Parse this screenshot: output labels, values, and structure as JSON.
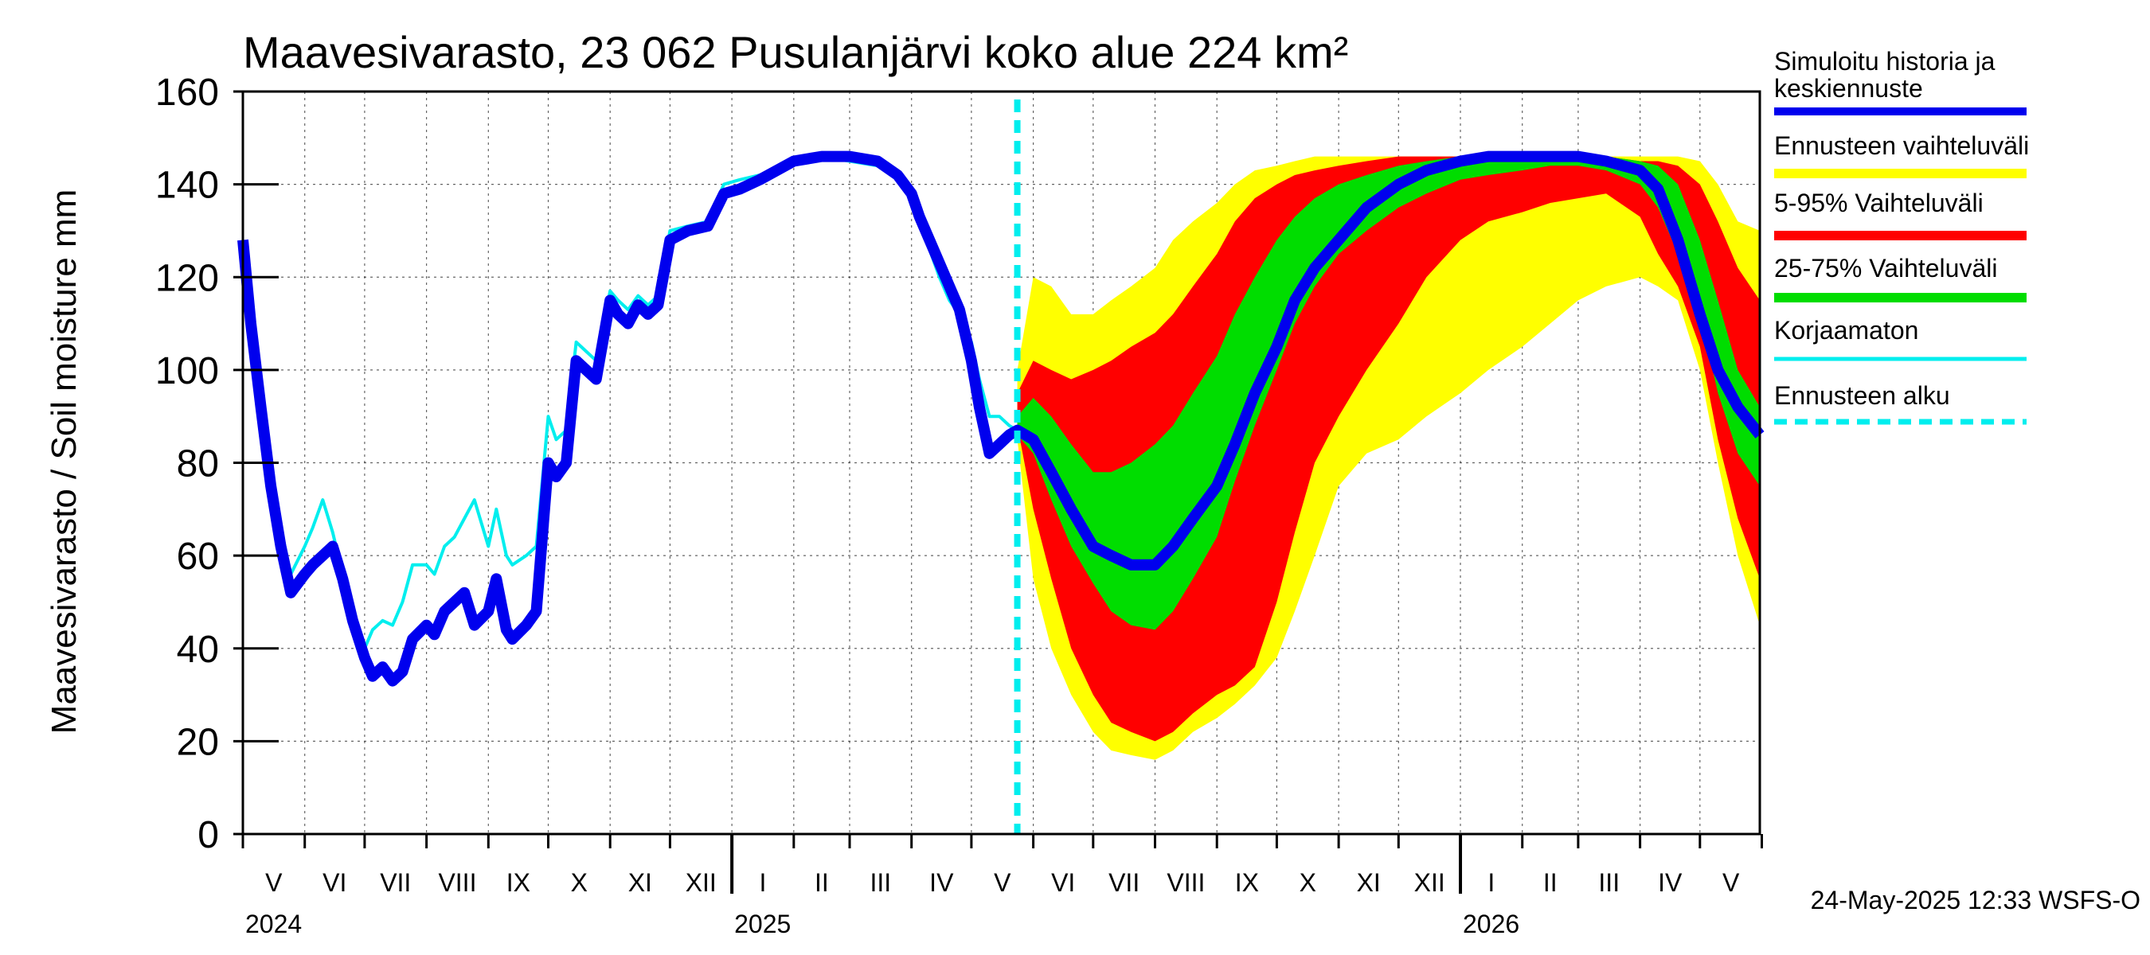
{
  "chart_data": {
    "type": "area",
    "title": "Maavesivarasto, 23 062 Pusulanjärvi koko alue 224 km²",
    "ylabel": "Maavesivarasto / Soil moisture   mm",
    "ylim": [
      0,
      160
    ],
    "yticks": [
      0,
      20,
      40,
      60,
      80,
      100,
      120,
      140,
      160
    ],
    "xlim": [
      "2024-05-01",
      "2026-05-31"
    ],
    "grid": true,
    "legend_position": "right",
    "forecast_start": "2025-05-24",
    "timestamp": "24-May-2025 12:33 WSFS-O",
    "months": [
      "V",
      "VI",
      "VII",
      "VIII",
      "IX",
      "X",
      "XI",
      "XII",
      "I",
      "II",
      "III",
      "IV",
      "V",
      "VI",
      "VII",
      "VIII",
      "IX",
      "X",
      "XI",
      "XII",
      "I",
      "II",
      "III",
      "IV",
      "V"
    ],
    "years": [
      {
        "label": "2024",
        "date": "2024-05-01"
      },
      {
        "label": "2025",
        "date": "2025-01-01"
      },
      {
        "label": "2026",
        "date": "2026-01-01"
      }
    ],
    "legend": [
      {
        "label": "Simuloitu historia ja keskiennuste",
        "lines": [
          "Simuloitu historia ja",
          "keskiennuste"
        ],
        "color": "#0000ee",
        "style": "thick"
      },
      {
        "label": "Ennusteen vaihteluväli",
        "lines": [
          "Ennusteen vaihteluväli"
        ],
        "color": "#ffff00",
        "style": "band"
      },
      {
        "label": "5-95% Vaihteluväli",
        "lines": [
          "5-95% Vaihteluväli"
        ],
        "color": "#ff0000",
        "style": "band"
      },
      {
        "label": "25-75% Vaihteluväli",
        "lines": [
          "25-75% Vaihteluväli"
        ],
        "color": "#00dd00",
        "style": "band"
      },
      {
        "label": "Korjaamaton",
        "lines": [
          "Korjaamaton"
        ],
        "color": "#00eeee",
        "style": "thin"
      },
      {
        "label": "Ennusteen alku",
        "lines": [
          "Ennusteen alku"
        ],
        "color": "#00eeee",
        "style": "dashed"
      }
    ],
    "series": [
      {
        "name": "Simuloitu historia ja keskiennuste",
        "x": [
          "2024-05-01",
          "2024-05-05",
          "2024-05-10",
          "2024-05-15",
          "2024-05-20",
          "2024-05-25",
          "2024-06-01",
          "2024-06-05",
          "2024-06-10",
          "2024-06-15",
          "2024-06-20",
          "2024-06-25",
          "2024-07-01",
          "2024-07-05",
          "2024-07-10",
          "2024-07-15",
          "2024-07-20",
          "2024-07-25",
          "2024-08-01",
          "2024-08-05",
          "2024-08-10",
          "2024-08-15",
          "2024-08-20",
          "2024-08-25",
          "2024-09-01",
          "2024-09-05",
          "2024-09-10",
          "2024-09-13",
          "2024-09-20",
          "2024-09-25",
          "2024-10-01",
          "2024-10-05",
          "2024-10-10",
          "2024-10-15",
          "2024-10-20",
          "2024-10-25",
          "2024-11-01",
          "2024-11-05",
          "2024-11-10",
          "2024-11-15",
          "2024-11-20",
          "2024-11-25",
          "2024-12-01",
          "2024-12-10",
          "2024-12-20",
          "2024-12-28",
          "2025-01-05",
          "2025-01-15",
          "2025-02-01",
          "2025-02-15",
          "2025-03-01",
          "2025-03-15",
          "2025-03-25",
          "2025-04-01",
          "2025-04-05",
          "2025-04-10",
          "2025-04-15",
          "2025-04-20",
          "2025-04-25",
          "2025-05-01",
          "2025-05-05",
          "2025-05-10",
          "2025-05-15",
          "2025-05-20",
          "2025-05-24",
          "2025-06-01",
          "2025-06-10",
          "2025-06-20",
          "2025-07-01",
          "2025-07-10",
          "2025-07-20",
          "2025-08-01",
          "2025-08-10",
          "2025-08-20",
          "2025-09-01",
          "2025-09-10",
          "2025-09-20",
          "2025-10-01",
          "2025-10-10",
          "2025-10-20",
          "2025-11-01",
          "2025-11-15",
          "2025-12-01",
          "2025-12-15",
          "2026-01-01",
          "2026-01-15",
          "2026-02-01",
          "2026-02-15",
          "2026-03-01",
          "2026-03-15",
          "2026-04-01",
          "2026-04-10",
          "2026-04-20",
          "2026-05-01",
          "2026-05-10",
          "2026-05-20",
          "2026-05-31"
        ],
        "y": [
          128,
          110,
          92,
          75,
          62,
          52,
          56,
          58,
          60,
          62,
          55,
          46,
          38,
          34,
          36,
          33,
          35,
          42,
          45,
          43,
          48,
          50,
          52,
          45,
          48,
          55,
          44,
          42,
          45,
          48,
          80,
          77,
          80,
          102,
          100,
          98,
          115,
          112,
          110,
          114,
          112,
          114,
          128,
          130,
          131,
          138,
          139,
          141,
          145,
          146,
          146,
          145,
          142,
          138,
          133,
          128,
          123,
          118,
          113,
          102,
          92,
          82,
          84,
          86,
          87,
          85,
          78,
          70,
          62,
          60,
          58,
          58,
          62,
          68,
          75,
          84,
          95,
          105,
          115,
          122,
          128,
          135,
          140,
          143,
          145,
          146,
          146,
          146,
          146,
          145,
          143,
          139,
          128,
          112,
          100,
          92,
          86
        ]
      },
      {
        "name": "Korjaamaton",
        "x": [
          "2024-05-01",
          "2024-05-05",
          "2024-05-10",
          "2024-05-15",
          "2024-05-20",
          "2024-05-25",
          "2024-06-01",
          "2024-06-05",
          "2024-06-10",
          "2024-06-15",
          "2024-06-20",
          "2024-06-25",
          "2024-07-01",
          "2024-07-05",
          "2024-07-10",
          "2024-07-15",
          "2024-07-20",
          "2024-07-25",
          "2024-08-01",
          "2024-08-05",
          "2024-08-10",
          "2024-08-15",
          "2024-08-20",
          "2024-08-25",
          "2024-09-01",
          "2024-09-05",
          "2024-09-10",
          "2024-09-13",
          "2024-09-20",
          "2024-09-25",
          "2024-10-01",
          "2024-10-05",
          "2024-10-10",
          "2024-10-15",
          "2024-10-20",
          "2024-10-25",
          "2024-11-01",
          "2024-11-05",
          "2024-11-10",
          "2024-11-15",
          "2024-11-20",
          "2024-11-25",
          "2024-12-01",
          "2024-12-10",
          "2024-12-20",
          "2024-12-28",
          "2025-01-05",
          "2025-01-15",
          "2025-02-01",
          "2025-02-15",
          "2025-03-01",
          "2025-03-15",
          "2025-03-25",
          "2025-04-01",
          "2025-04-05",
          "2025-04-10",
          "2025-04-15",
          "2025-04-20",
          "2025-04-25",
          "2025-05-01",
          "2025-05-05",
          "2025-05-10",
          "2025-05-15",
          "2025-05-20",
          "2025-05-24"
        ],
        "y": [
          128,
          112,
          95,
          80,
          66,
          56,
          62,
          66,
          72,
          65,
          56,
          48,
          40,
          44,
          46,
          45,
          50,
          58,
          58,
          56,
          62,
          64,
          68,
          72,
          62,
          70,
          60,
          58,
          60,
          62,
          90,
          85,
          87,
          106,
          104,
          102,
          117,
          115,
          113,
          116,
          114,
          116,
          130,
          131,
          132,
          140,
          141,
          142,
          145,
          146,
          145,
          144,
          141,
          137,
          132,
          126,
          120,
          115,
          112,
          106,
          98,
          90,
          90,
          88,
          87
        ]
      }
    ],
    "bands": [
      {
        "name": "Ennusteen vaihteluväli",
        "x": [
          "2025-05-24",
          "2025-06-01",
          "2025-06-10",
          "2025-06-20",
          "2025-07-01",
          "2025-07-10",
          "2025-07-20",
          "2025-08-01",
          "2025-08-10",
          "2025-08-20",
          "2025-09-01",
          "2025-09-10",
          "2025-09-20",
          "2025-10-01",
          "2025-10-10",
          "2025-10-20",
          "2025-11-01",
          "2025-11-15",
          "2025-12-01",
          "2025-12-15",
          "2026-01-01",
          "2026-01-15",
          "2026-02-01",
          "2026-02-15",
          "2026-03-01",
          "2026-03-15",
          "2026-04-01",
          "2026-04-10",
          "2026-04-20",
          "2026-05-01",
          "2026-05-10",
          "2026-05-20",
          "2026-05-31"
        ],
        "low": [
          85,
          55,
          40,
          30,
          22,
          18,
          17,
          16,
          18,
          22,
          25,
          28,
          32,
          38,
          48,
          60,
          75,
          82,
          85,
          90,
          95,
          100,
          105,
          110,
          115,
          118,
          120,
          118,
          115,
          100,
          80,
          60,
          45
        ],
        "high": [
          100,
          120,
          118,
          112,
          112,
          115,
          118,
          122,
          128,
          132,
          136,
          140,
          143,
          144,
          145,
          146,
          146,
          146,
          146,
          146,
          146,
          146,
          146,
          146,
          146,
          146,
          146,
          146,
          146,
          145,
          140,
          132,
          130
        ]
      },
      {
        "name": "5-95% Vaihteluväli",
        "x": [
          "2025-05-24",
          "2025-06-01",
          "2025-06-10",
          "2025-06-20",
          "2025-07-01",
          "2025-07-10",
          "2025-07-20",
          "2025-08-01",
          "2025-08-10",
          "2025-08-20",
          "2025-09-01",
          "2025-09-10",
          "2025-09-20",
          "2025-10-01",
          "2025-10-10",
          "2025-10-20",
          "2025-11-01",
          "2025-11-15",
          "2025-12-01",
          "2025-12-15",
          "2026-01-01",
          "2026-01-15",
          "2026-02-01",
          "2026-02-15",
          "2026-03-01",
          "2026-03-15",
          "2026-04-01",
          "2026-04-10",
          "2026-04-20",
          "2026-05-01",
          "2026-05-10",
          "2026-05-20",
          "2026-05-31"
        ],
        "low": [
          88,
          70,
          55,
          40,
          30,
          24,
          22,
          20,
          22,
          26,
          30,
          32,
          36,
          50,
          65,
          80,
          90,
          100,
          110,
          120,
          128,
          132,
          134,
          136,
          137,
          138,
          133,
          125,
          118,
          105,
          85,
          68,
          55
        ],
        "high": [
          95,
          102,
          100,
          98,
          100,
          102,
          105,
          108,
          112,
          118,
          125,
          132,
          137,
          140,
          142,
          143,
          144,
          145,
          146,
          146,
          146,
          146,
          146,
          146,
          146,
          146,
          145,
          145,
          144,
          140,
          132,
          122,
          115
        ]
      },
      {
        "name": "25-75% Vaihteluväli",
        "x": [
          "2025-05-24",
          "2025-06-01",
          "2025-06-10",
          "2025-06-20",
          "2025-07-01",
          "2025-07-10",
          "2025-07-20",
          "2025-08-01",
          "2025-08-10",
          "2025-08-20",
          "2025-09-01",
          "2025-09-10",
          "2025-09-20",
          "2025-10-01",
          "2025-10-10",
          "2025-10-20",
          "2025-11-01",
          "2025-11-15",
          "2025-12-01",
          "2025-12-15",
          "2026-01-01",
          "2026-01-15",
          "2026-02-01",
          "2026-02-15",
          "2026-03-01",
          "2026-03-15",
          "2026-04-01",
          "2026-04-10",
          "2026-04-20",
          "2026-05-01",
          "2026-05-10",
          "2026-05-20",
          "2026-05-31"
        ],
        "low": [
          86,
          82,
          72,
          62,
          54,
          48,
          45,
          44,
          48,
          55,
          64,
          76,
          88,
          100,
          110,
          118,
          125,
          130,
          135,
          138,
          141,
          142,
          143,
          144,
          144,
          143,
          140,
          135,
          125,
          112,
          95,
          82,
          75
        ],
        "high": [
          90,
          94,
          90,
          84,
          78,
          78,
          80,
          84,
          88,
          95,
          103,
          112,
          120,
          128,
          133,
          137,
          140,
          142,
          144,
          145,
          146,
          146,
          146,
          146,
          146,
          146,
          145,
          144,
          140,
          128,
          115,
          100,
          92
        ]
      }
    ]
  }
}
